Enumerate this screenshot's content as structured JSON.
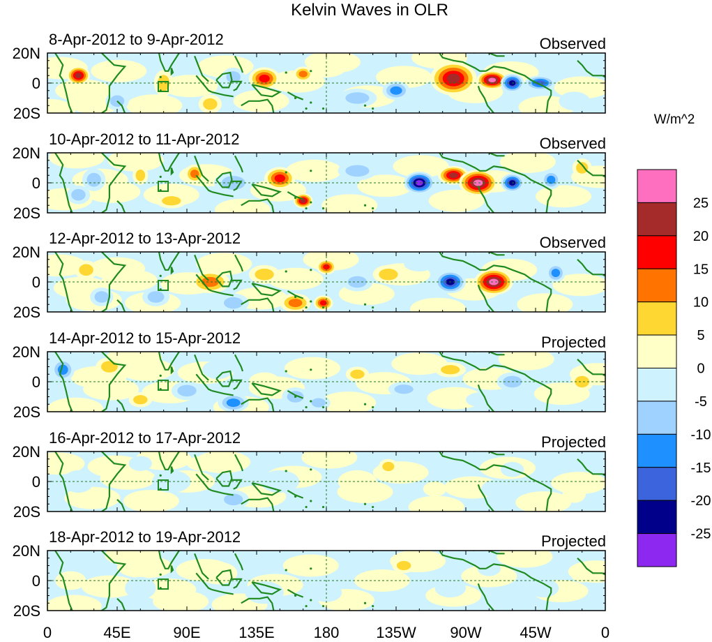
{
  "chart_data": {
    "type": "heatmap",
    "title": "Kelvin Waves in OLR",
    "x_ticks": [
      "0",
      "45E",
      "90E",
      "135E",
      "180",
      "135W",
      "90W",
      "45W",
      "0"
    ],
    "y_ticks": [
      "20N",
      "0",
      "20S"
    ],
    "xlim": [
      0,
      360
    ],
    "ylim": [
      -20,
      20
    ],
    "units": "W/m^2",
    "colorbar": {
      "labels": [
        "25",
        "20",
        "15",
        "10",
        "5",
        "0",
        "-5",
        "-10",
        "-15",
        "-20",
        "-25"
      ],
      "colors": [
        "#ff6fc0",
        "#a52a2a",
        "#ff0000",
        "#ff7300",
        "#ffd733",
        "#ffffc8",
        "#cff2ff",
        "#a0d2ff",
        "#1e90ff",
        "#3c64dc",
        "#00008b",
        "#8c28f0"
      ]
    },
    "panels": [
      {
        "date": "8-Apr-2012 to 9-Apr-2012",
        "label": "Observed",
        "blobs": [
          [
            20,
            5,
            6,
            5,
            22
          ],
          [
            75,
            0,
            5,
            7,
            8
          ],
          [
            120,
            4,
            6,
            5,
            -8
          ],
          [
            140,
            3,
            8,
            6,
            17
          ],
          [
            165,
            6,
            5,
            4,
            12
          ],
          [
            225,
            -5,
            7,
            5,
            -12
          ],
          [
            262,
            3,
            12,
            9,
            24
          ],
          [
            287,
            2,
            8,
            5,
            28
          ],
          [
            300,
            0,
            6,
            5,
            -24
          ],
          [
            318,
            0,
            8,
            4,
            -18
          ],
          [
            45,
            -12,
            6,
            5,
            -8
          ],
          [
            105,
            -14,
            6,
            5,
            8
          ],
          [
            200,
            -10,
            10,
            5,
            -6
          ],
          [
            340,
            -12,
            8,
            5,
            -5
          ],
          [
            180,
            10,
            10,
            5,
            5
          ]
        ]
      },
      {
        "date": "10-Apr-2012 to 11-Apr-2012",
        "label": "Observed",
        "blobs": [
          [
            30,
            2,
            6,
            6,
            -8
          ],
          [
            60,
            5,
            4,
            5,
            10
          ],
          [
            95,
            6,
            5,
            5,
            12
          ],
          [
            120,
            0,
            10,
            6,
            -10
          ],
          [
            150,
            3,
            8,
            6,
            18
          ],
          [
            165,
            -12,
            5,
            4,
            22
          ],
          [
            240,
            0,
            8,
            6,
            -26
          ],
          [
            262,
            5,
            8,
            5,
            22
          ],
          [
            278,
            0,
            10,
            7,
            28
          ],
          [
            300,
            0,
            6,
            5,
            -22
          ],
          [
            325,
            2,
            5,
            5,
            -12
          ],
          [
            200,
            8,
            10,
            5,
            -7
          ],
          [
            80,
            -12,
            8,
            4,
            6
          ],
          [
            20,
            -8,
            6,
            5,
            -8
          ],
          [
            345,
            10,
            5,
            5,
            8
          ]
        ]
      },
      {
        "date": "12-Apr-2012 to 13-Apr-2012",
        "label": "Observed",
        "blobs": [
          [
            25,
            8,
            6,
            5,
            7
          ],
          [
            70,
            -10,
            7,
            5,
            -10
          ],
          [
            105,
            0,
            10,
            6,
            12
          ],
          [
            140,
            5,
            8,
            5,
            8
          ],
          [
            160,
            -14,
            8,
            5,
            14
          ],
          [
            180,
            10,
            5,
            4,
            18
          ],
          [
            178,
            -14,
            5,
            4,
            20
          ],
          [
            200,
            0,
            8,
            5,
            -8
          ],
          [
            220,
            5,
            8,
            5,
            6
          ],
          [
            260,
            0,
            8,
            6,
            -24
          ],
          [
            288,
            0,
            10,
            7,
            26
          ],
          [
            328,
            6,
            5,
            5,
            -14
          ],
          [
            120,
            -14,
            8,
            5,
            -8
          ],
          [
            35,
            -10,
            6,
            5,
            -6
          ],
          [
            240,
            12,
            8,
            4,
            -5
          ]
        ]
      },
      {
        "date": "14-Apr-2012 to 15-Apr-2012",
        "label": "Projected",
        "blobs": [
          [
            10,
            8,
            6,
            6,
            -12
          ],
          [
            40,
            10,
            7,
            5,
            8
          ],
          [
            90,
            -6,
            8,
            5,
            -6
          ],
          [
            120,
            -14,
            8,
            5,
            -14
          ],
          [
            110,
            8,
            8,
            5,
            -5
          ],
          [
            160,
            -10,
            7,
            5,
            -6
          ],
          [
            175,
            -14,
            6,
            4,
            -10
          ],
          [
            200,
            5,
            6,
            4,
            10
          ],
          [
            230,
            -5,
            8,
            4,
            -8
          ],
          [
            260,
            8,
            8,
            4,
            6
          ],
          [
            300,
            0,
            8,
            5,
            -6
          ],
          [
            345,
            0,
            6,
            5,
            10
          ],
          [
            140,
            0,
            8,
            5,
            5
          ],
          [
            60,
            -12,
            6,
            4,
            6
          ],
          [
            280,
            -12,
            8,
            4,
            -5
          ]
        ]
      },
      {
        "date": "16-Apr-2012 to 17-Apr-2012",
        "label": "Projected",
        "blobs": [
          [
            20,
            0,
            8,
            6,
            -4
          ],
          [
            80,
            0,
            10,
            6,
            -5
          ],
          [
            120,
            -12,
            8,
            5,
            -6
          ],
          [
            150,
            0,
            10,
            6,
            -5
          ],
          [
            200,
            0,
            10,
            6,
            3
          ],
          [
            220,
            10,
            5,
            4,
            6
          ],
          [
            250,
            -5,
            6,
            4,
            4
          ],
          [
            290,
            -5,
            8,
            5,
            -5
          ],
          [
            300,
            8,
            6,
            4,
            -4
          ],
          [
            340,
            -8,
            6,
            5,
            4
          ],
          [
            100,
            12,
            8,
            4,
            3
          ],
          [
            60,
            12,
            6,
            4,
            -3
          ]
        ]
      },
      {
        "date": "18-Apr-2012 to 19-Apr-2012",
        "label": "Projected",
        "blobs": [
          [
            15,
            0,
            8,
            5,
            4
          ],
          [
            60,
            -5,
            8,
            6,
            -4
          ],
          [
            110,
            5,
            10,
            6,
            3
          ],
          [
            140,
            -8,
            10,
            6,
            -4
          ],
          [
            180,
            -8,
            8,
            5,
            -3
          ],
          [
            230,
            10,
            6,
            4,
            6
          ],
          [
            260,
            -5,
            8,
            5,
            -3
          ],
          [
            285,
            8,
            6,
            4,
            -5
          ],
          [
            320,
            -5,
            8,
            5,
            -4
          ],
          [
            345,
            5,
            6,
            5,
            4
          ],
          [
            80,
            -14,
            8,
            4,
            3
          ]
        ]
      }
    ]
  }
}
